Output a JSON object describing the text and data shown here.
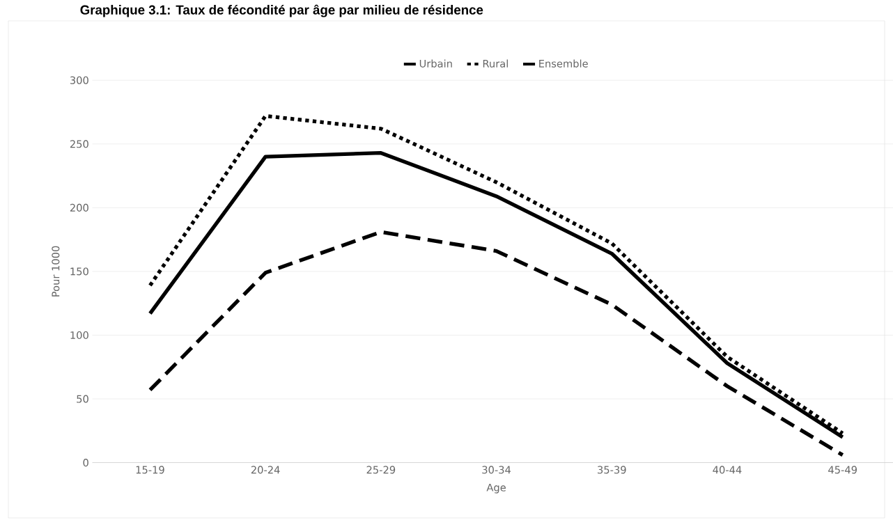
{
  "chart_data": {
    "type": "line",
    "title": "Graphique 3.1: Taux de fécondité par âge par milieu de résidence",
    "xlabel": "Age",
    "ylabel": "Pour 1000",
    "categories": [
      "15-19",
      "20-24",
      "25-29",
      "30-34",
      "35-39",
      "40-44",
      "45-49"
    ],
    "series": [
      {
        "name": "Urbain",
        "color": "#000000",
        "line_style": "dashed",
        "values": [
          57,
          149,
          181,
          166,
          124,
          60,
          6
        ]
      },
      {
        "name": "Rural",
        "color": "#000000",
        "line_style": "dotted",
        "values": [
          139,
          272,
          262,
          220,
          172,
          83,
          23
        ]
      },
      {
        "name": "Ensemble",
        "color": "#000000",
        "line_style": "solid",
        "values": [
          117,
          240,
          243,
          209,
          164,
          78,
          20
        ]
      }
    ],
    "ylim": [
      0,
      300
    ],
    "yticks": [
      0,
      50,
      100,
      150,
      200,
      250,
      300
    ],
    "grid": "y",
    "legend": "top",
    "marker": "none"
  }
}
